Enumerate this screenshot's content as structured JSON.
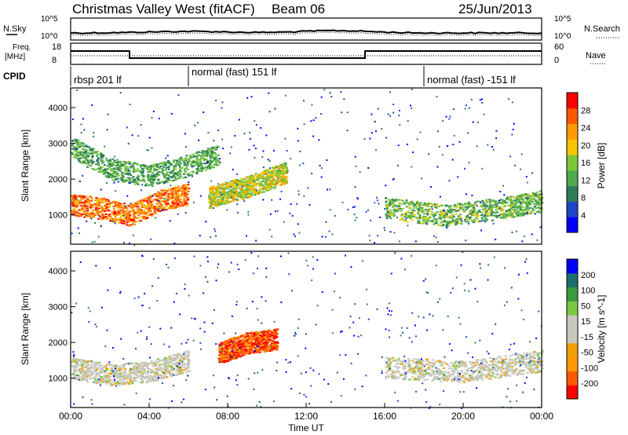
{
  "header": {
    "title": "Christmas Valley West (fitACF)",
    "beam": "Beam 06",
    "date": "25/Jun/2013"
  },
  "noise_panel": {
    "left_label": "N.Sky",
    "right_label": "N.Search",
    "left_ticks": [
      "10^5",
      "10^0"
    ],
    "right_ticks": [
      "10^5",
      "10^0"
    ]
  },
  "freq_panel": {
    "left_label_1": "Freq.",
    "left_label_2": "[MHz]",
    "right_label": "Nave",
    "left_ticks": [
      "18",
      "8"
    ],
    "right_ticks": [
      "60",
      "0"
    ]
  },
  "cpid_panel": {
    "label": "CPID",
    "programs": [
      {
        "name": "rbsp 201 lf",
        "start_hour": 0
      },
      {
        "name": "normal (fast) 151 lf",
        "start_hour": 6
      },
      {
        "name": "normal (fast) -151 lf",
        "start_hour": 18
      }
    ]
  },
  "x_axis": {
    "label": "Time UT",
    "ticks": [
      "00:00",
      "04:00",
      "08:00",
      "12:00",
      "16:00",
      "20:00",
      "00:00"
    ]
  },
  "colors": {
    "power_scale": [
      "#0000ff",
      "#1e46c8",
      "#2e7d5a",
      "#4faa4f",
      "#7bc83a",
      "#f5c400",
      "#ff9b00",
      "#ff5a00",
      "#ff0000"
    ],
    "velocity_scale": [
      "#ff0000",
      "#ff5a00",
      "#ff9b00",
      "#f0a000",
      "#c8c8c0",
      "#c8c8c0",
      "#7ac843",
      "#3c9a3c",
      "#1e6e6e",
      "#0000ff"
    ]
  },
  "chart_data": [
    {
      "type": "heatmap",
      "name": "power",
      "ylabel": "Slant Range [km]",
      "xlabel": "Time UT",
      "xlim": [
        0,
        24
      ],
      "ylim": [
        180,
        4550
      ],
      "yticks": [
        "1000",
        "2000",
        "3000",
        "4000"
      ],
      "colorbar": {
        "label": "Power [dB]",
        "ticks": [
          "4",
          "8",
          "12",
          "16",
          "20",
          "24",
          "28"
        ],
        "range": [
          0,
          32
        ]
      },
      "features": [
        {
          "desc": "auroral/ionospheric scatter band",
          "x": [
            0.0,
            1.5,
            3.0,
            4.5,
            6.0
          ],
          "y": [
            1300,
            1200,
            1000,
            1400,
            1600
          ],
          "value_db": 26
        },
        {
          "desc": "upper band",
          "x": [
            0.0,
            2.0,
            4.0,
            6.0,
            7.5
          ],
          "y": [
            2900,
            2300,
            2100,
            2400,
            2700
          ],
          "value_db": 12
        },
        {
          "desc": "mid band",
          "x": [
            7.0,
            9.0,
            11.0
          ],
          "y": [
            1500,
            1800,
            2200
          ],
          "value_db": 18
        },
        {
          "desc": "evening band",
          "x": [
            16.0,
            19.0,
            22.0,
            24.0
          ],
          "y": [
            1200,
            1000,
            1200,
            1400
          ],
          "value_db": 14
        }
      ]
    },
    {
      "type": "heatmap",
      "name": "velocity",
      "ylabel": "Slant Range [km]",
      "xlabel": "Time UT",
      "xlim": [
        0,
        24
      ],
      "ylim": [
        180,
        4550
      ],
      "yticks": [
        "1000",
        "2000",
        "3000",
        "4000"
      ],
      "colorbar": {
        "label": "Velocity [m s^-1]",
        "ticks": [
          "-200",
          "-100",
          "-50",
          "-15",
          "15",
          "50",
          "100",
          "200"
        ],
        "range": [
          -250,
          250
        ]
      },
      "features": [
        {
          "desc": "low-velocity ground scatter",
          "x": [
            0.0,
            2.0,
            4.0,
            6.0
          ],
          "y": [
            1300,
            1100,
            1200,
            1500
          ],
          "value_ms": 0
        },
        {
          "desc": "strong negative velocity patch",
          "x": [
            7.5,
            9.0,
            10.5
          ],
          "y": [
            1700,
            2000,
            2100
          ],
          "value_ms": -150
        },
        {
          "desc": "evening ground scatter",
          "x": [
            16.0,
            20.0,
            24.0
          ],
          "y": [
            1300,
            1200,
            1500
          ],
          "value_ms": 0
        }
      ]
    }
  ]
}
